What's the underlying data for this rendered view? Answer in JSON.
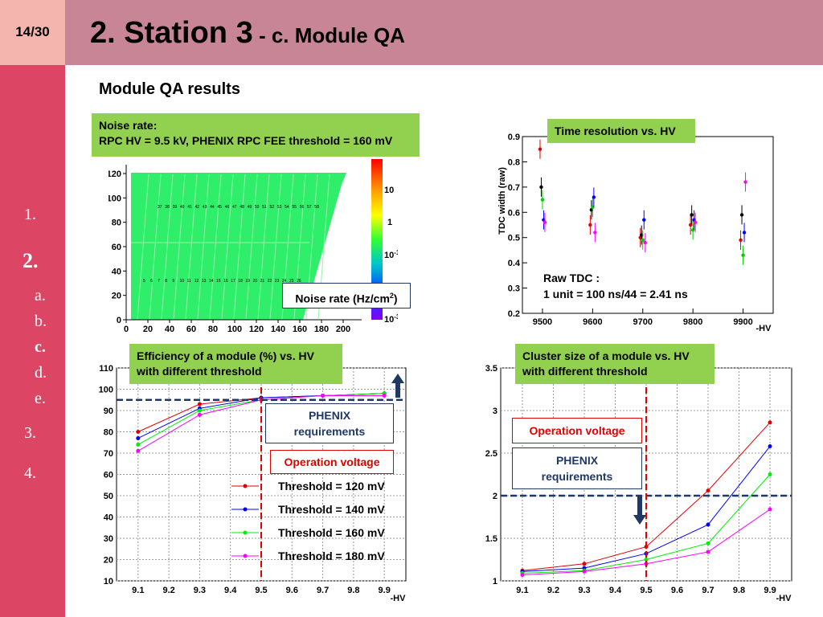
{
  "slide": {
    "page": "14/30",
    "title_main": "2. Station 3",
    "title_sub": " - c. Module QA",
    "subtitle": "Module QA results"
  },
  "nav": {
    "items": [
      "1.",
      "2.",
      "a.",
      "b.",
      "c.",
      "d.",
      "e.",
      "3.",
      "4."
    ],
    "active": [
      "2.",
      "c."
    ]
  },
  "noise_panel": {
    "caption_line1": "Noise rate:",
    "caption_line2": "RPC HV = 9.5 kV, PHENIX RPC FEE threshold = 160 mV",
    "label_text": "Noise rate (Hz/cm",
    "label_sup": "2",
    "label_close": ")",
    "colorbar_labels": [
      "10",
      "1",
      "10",
      "10"
    ],
    "colorbar_exponents": [
      "",
      "",
      "-1",
      "-3"
    ]
  },
  "time_panel": {
    "caption": "Time resolution vs. HV",
    "raw_tdc_line1": "Raw TDC :",
    "raw_tdc_line2": "1 unit = 100 ns/44 = 2.41 ns"
  },
  "efficiency_panel": {
    "caption_line1": "Efficiency of a module (%) vs. HV",
    "caption_line2": "with different threshold",
    "phenix_line1": "PHENIX",
    "phenix_line2": "requirements",
    "operation_voltage": "Operation voltage"
  },
  "cluster_panel": {
    "caption_line1": "Cluster size of a module vs. HV",
    "caption_line2": "with different threshold",
    "phenix_line1": "PHENIX",
    "phenix_line2": "requirements",
    "operation_voltage": "Operation voltage"
  },
  "colors": {
    "header": "#c78596",
    "sidebar": "#dc4564",
    "page_box": "#f3b5ae",
    "caption_green": "#92d050",
    "dashed_blue": "#1f3864",
    "operation_red": "#e00000"
  },
  "chart_data": [
    {
      "type": "heatmap",
      "xlim": [
        0,
        200
      ],
      "ylim": [
        0,
        120
      ],
      "x_ticks": [
        0,
        20,
        40,
        60,
        80,
        100,
        120,
        140,
        160,
        180,
        200
      ],
      "y_ticks": [
        0,
        20,
        40,
        60,
        80,
        100,
        120
      ],
      "colorbar": "log scale 1e-3 to ~1e2 Hz/cm2",
      "strip_labels_row1": [
        "37",
        "38",
        "39",
        "40",
        "41",
        "42",
        "43",
        "44",
        "45",
        "46",
        "47",
        "48",
        "49",
        "50",
        "51",
        "52",
        "53",
        "54",
        "55",
        "56",
        "57",
        "58"
      ],
      "strip_labels_row2": [
        "5",
        "6",
        "7",
        "8",
        "9",
        "10",
        "11",
        "12",
        "13",
        "14",
        "15",
        "16",
        "17",
        "18",
        "19",
        "20",
        "21",
        "22",
        "23",
        "24",
        "25",
        "26"
      ]
    },
    {
      "type": "scatter",
      "xlabel": "-HV",
      "ylabel": "TDC width (raw)",
      "x_ticks": [
        9500,
        9600,
        9700,
        9800,
        9900
      ],
      "y_ticks": [
        0.2,
        0.3,
        0.4,
        0.5,
        0.6,
        0.7,
        0.8,
        0.9
      ],
      "xlim": [
        9460,
        9960
      ],
      "ylim": [
        0.2,
        0.9
      ],
      "series": [
        {
          "color": "#e00000",
          "x": [
            9500,
            9600,
            9700,
            9800,
            9900
          ],
          "y": [
            0.85,
            0.55,
            0.5,
            0.55,
            0.49
          ]
        },
        {
          "color": "#000000",
          "x": [
            9500,
            9600,
            9700,
            9800,
            9900
          ],
          "y": [
            0.7,
            0.61,
            0.51,
            0.59,
            0.59
          ]
        },
        {
          "color": "#00cc00",
          "x": [
            9500,
            9600,
            9700,
            9800,
            9900
          ],
          "y": [
            0.65,
            0.62,
            0.49,
            0.53,
            0.43
          ]
        },
        {
          "color": "#0000ff",
          "x": [
            9500,
            9600,
            9700,
            9800,
            9900
          ],
          "y": [
            0.57,
            0.66,
            0.57,
            0.57,
            0.52
          ]
        },
        {
          "color": "#ff00ff",
          "x": [
            9500,
            9600,
            9700,
            9800,
            9900
          ],
          "y": [
            0.56,
            0.52,
            0.48,
            0.56,
            0.72
          ]
        }
      ]
    },
    {
      "type": "line",
      "xlabel": "-HV",
      "x_ticks": [
        9.1,
        9.2,
        9.3,
        9.4,
        9.5,
        9.6,
        9.7,
        9.8,
        9.9
      ],
      "y_ticks": [
        10,
        20,
        30,
        40,
        50,
        60,
        70,
        80,
        90,
        100,
        110
      ],
      "xlim": [
        9.03,
        9.97
      ],
      "ylim": [
        10,
        110
      ],
      "requirement_y": 95,
      "operation_x": 9.5,
      "x": [
        9.1,
        9.3,
        9.5,
        9.7,
        9.9
      ],
      "series": [
        {
          "name": "Threshold = 120 mV",
          "color": "#e00000",
          "values": [
            80,
            93,
            96,
            97,
            98
          ]
        },
        {
          "name": "Threshold = 140 mV",
          "color": "#0000ff",
          "values": [
            77,
            91,
            96,
            97,
            98
          ]
        },
        {
          "name": "Threshold = 160 mV",
          "color": "#00ee00",
          "values": [
            74,
            90,
            95,
            97,
            98
          ]
        },
        {
          "name": "Threshold = 180 mV",
          "color": "#ff00ff",
          "values": [
            71,
            88,
            95,
            97,
            97
          ]
        }
      ]
    },
    {
      "type": "line",
      "xlabel": "-HV",
      "x_ticks": [
        9.1,
        9.2,
        9.3,
        9.4,
        9.5,
        9.6,
        9.7,
        9.8,
        9.9
      ],
      "y_ticks": [
        1,
        1.5,
        2,
        2.5,
        3,
        3.5
      ],
      "xlim": [
        9.03,
        9.97
      ],
      "ylim": [
        1,
        3.5
      ],
      "requirement_y": 2,
      "operation_x": 9.5,
      "x": [
        9.1,
        9.3,
        9.5,
        9.7,
        9.9
      ],
      "series": [
        {
          "color": "#e00000",
          "values": [
            1.12,
            1.2,
            1.4,
            2.06,
            2.86
          ]
        },
        {
          "color": "#0000ff",
          "values": [
            1.11,
            1.15,
            1.32,
            1.66,
            2.58
          ]
        },
        {
          "color": "#00ee00",
          "values": [
            1.09,
            1.12,
            1.25,
            1.44,
            2.25
          ]
        },
        {
          "color": "#ff00ff",
          "values": [
            1.07,
            1.11,
            1.2,
            1.34,
            1.84
          ]
        }
      ]
    }
  ]
}
